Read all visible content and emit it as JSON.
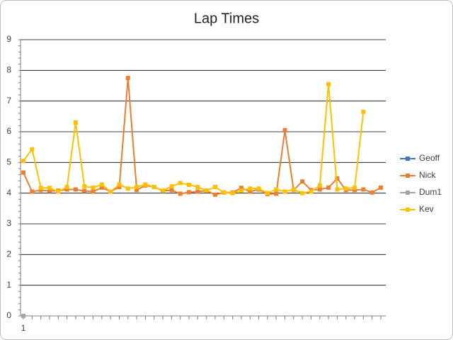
{
  "chart_data": {
    "type": "line",
    "title": "Lap Times",
    "categories": [
      "1",
      null,
      null,
      null,
      null,
      null,
      null,
      null,
      null,
      null,
      null,
      null,
      null,
      null,
      null,
      null,
      null,
      null,
      null,
      null,
      null,
      null,
      null,
      null,
      null,
      null,
      null,
      null,
      null,
      null,
      null,
      null,
      null,
      null,
      null,
      null,
      null,
      null,
      null,
      null,
      null,
      null
    ],
    "ylim": [
      0,
      9
    ],
    "yticks": [
      0,
      1,
      2,
      3,
      4,
      5,
      6,
      7,
      8,
      9
    ],
    "grid": true,
    "legend": "right",
    "series": [
      {
        "name": "Geoff",
        "color": "#4472c4",
        "values": [
          null,
          null,
          null,
          null,
          null,
          null,
          null,
          null,
          null,
          null,
          null,
          null,
          null,
          null,
          null,
          null,
          null,
          null,
          null,
          null,
          null,
          null,
          null,
          null,
          null,
          null,
          null,
          null,
          null,
          null,
          null,
          null,
          null,
          null,
          null,
          null,
          null,
          null,
          null,
          null,
          null,
          null
        ]
      },
      {
        "name": "Nick",
        "color": "#ed7d31",
        "values": [
          4.67,
          4.05,
          4.1,
          4.07,
          4.08,
          4.12,
          4.12,
          4.07,
          4.05,
          4.18,
          4.05,
          4.2,
          7.75,
          4.1,
          4.25,
          4.2,
          4.07,
          4.1,
          3.98,
          4.03,
          4.05,
          4.08,
          3.95,
          4.02,
          4.02,
          4.17,
          4.05,
          4.12,
          3.97,
          3.98,
          6.05,
          4.1,
          4.38,
          4.1,
          4.12,
          4.18,
          4.48,
          4.1,
          4.1,
          4.12,
          4.02,
          4.18
        ]
      },
      {
        "name": "Dum1",
        "color": "#a5a5a5",
        "values": [
          0,
          null,
          null,
          null,
          null,
          null,
          null,
          null,
          null,
          null,
          null,
          null,
          null,
          null,
          null,
          null,
          null,
          null,
          null,
          null,
          null,
          null,
          null,
          null,
          null,
          null,
          null,
          null,
          null,
          null,
          null,
          null,
          null,
          null,
          null,
          null,
          null,
          null,
          null,
          null,
          null,
          null
        ]
      },
      {
        "name": "Kev",
        "color": "#ffc000",
        "values": [
          5.05,
          5.43,
          4.17,
          4.17,
          4.05,
          4.2,
          6.3,
          4.22,
          4.18,
          4.28,
          4.05,
          4.28,
          4.15,
          4.2,
          4.28,
          4.2,
          4.08,
          4.22,
          4.33,
          4.27,
          4.2,
          4.08,
          4.2,
          4.02,
          4.0,
          4.08,
          4.15,
          4.15,
          4.0,
          4.12,
          4.05,
          4.12,
          4.0,
          4.05,
          4.25,
          7.55,
          4.12,
          4.15,
          4.18,
          6.65,
          null,
          null
        ]
      }
    ]
  }
}
